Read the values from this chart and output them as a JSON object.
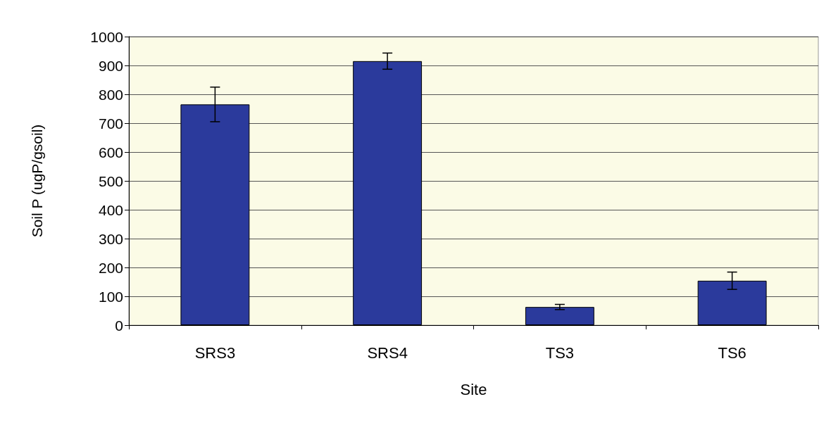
{
  "chart_data": {
    "type": "bar",
    "xlabel": "Site",
    "ylabel": "Soil P (ugP/gsoil)",
    "categories": [
      "SRS3",
      "SRS4",
      "TS3",
      "TS6"
    ],
    "series": [
      {
        "color": "#2b3a9c",
        "values": [
          765,
          915,
          63,
          154
        ],
        "errors": [
          60,
          28,
          9,
          30
        ]
      }
    ],
    "ylim": [
      0,
      1000
    ],
    "yticks": [
      0,
      100,
      200,
      300,
      400,
      500,
      600,
      700,
      800,
      900,
      1000
    ],
    "grid": "y"
  }
}
